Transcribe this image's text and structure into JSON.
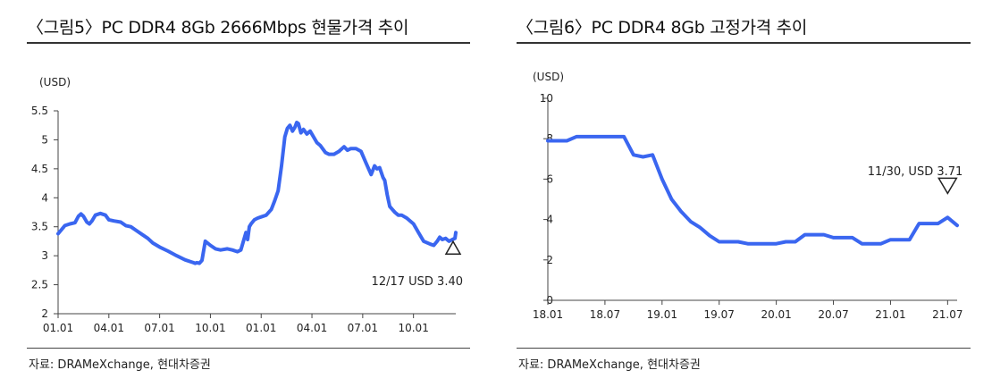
{
  "chart_data": [
    {
      "type": "line",
      "title": "〈그림5〉PC DDR4 8Gb 2666Mbps 현물가격 추이",
      "ylabel": "(USD)",
      "source": "자료: DRAMeXchange, 현대차증권",
      "ylim": [
        2,
        5.5
      ],
      "yticks": [
        "5.5",
        "5",
        "4.5",
        "4",
        "3.5",
        "3",
        "2.5",
        "2"
      ],
      "xlim": [
        0,
        23.5
      ],
      "xtick_positions": [
        0,
        3,
        6,
        9,
        12,
        15,
        18,
        21
      ],
      "xticks": [
        "01.01",
        "04.01",
        "07.01",
        "10.01",
        "01.01",
        "04.01",
        "07.01",
        "10.01"
      ],
      "grid": false,
      "line_color": "#3a66f0",
      "annotation": {
        "text": "12/17  USD 3.40",
        "marker": "up-triangle",
        "x": 23.5,
        "y": 3.4
      },
      "series": [
        {
          "x": [
            0,
            0.2,
            0.4,
            0.7,
            1.0,
            1.2,
            1.35,
            1.5,
            1.7,
            1.85,
            2.0,
            2.2,
            2.5,
            2.8,
            3.0,
            3.3,
            3.7,
            4.0,
            4.3,
            4.6,
            5.0,
            5.3,
            5.6,
            6.0,
            6.5,
            7.0,
            7.5,
            7.8,
            8.0,
            8.1,
            8.2,
            8.35,
            8.5,
            8.7,
            9.0,
            9.3,
            9.6,
            10.0,
            10.3,
            10.6,
            10.8,
            11.0,
            11.1,
            11.2,
            11.3,
            11.4,
            11.6,
            11.8,
            12.0,
            12.3,
            12.6,
            12.8,
            13.0,
            13.2,
            13.4,
            13.55,
            13.7,
            13.85,
            14.0,
            14.1,
            14.2,
            14.35,
            14.5,
            14.7,
            14.9,
            15.1,
            15.3,
            15.5,
            15.8,
            16.0,
            16.3,
            16.6,
            16.9,
            17.1,
            17.3,
            17.6,
            17.9,
            18.2,
            18.5,
            18.7,
            18.85,
            19.0,
            19.2,
            19.3,
            19.45,
            19.6,
            19.75,
            19.9,
            20.1,
            20.3,
            20.6,
            21.0,
            21.3,
            21.6,
            22.0,
            22.2,
            22.4,
            22.55,
            22.7,
            22.9,
            23.1,
            23.3,
            23.45,
            23.5
          ],
          "y": [
            3.38,
            3.45,
            3.52,
            3.55,
            3.57,
            3.68,
            3.72,
            3.68,
            3.58,
            3.55,
            3.6,
            3.7,
            3.73,
            3.7,
            3.62,
            3.6,
            3.58,
            3.52,
            3.5,
            3.44,
            3.36,
            3.3,
            3.22,
            3.15,
            3.08,
            3.0,
            2.93,
            2.9,
            2.88,
            2.87,
            2.88,
            2.87,
            2.92,
            3.25,
            3.18,
            3.12,
            3.1,
            3.12,
            3.1,
            3.07,
            3.1,
            3.3,
            3.4,
            3.28,
            3.5,
            3.55,
            3.62,
            3.65,
            3.67,
            3.7,
            3.8,
            3.95,
            4.12,
            4.55,
            5.05,
            5.2,
            5.25,
            5.15,
            5.22,
            5.3,
            5.28,
            5.12,
            5.18,
            5.1,
            5.15,
            5.05,
            4.95,
            4.9,
            4.78,
            4.75,
            4.75,
            4.8,
            4.88,
            4.82,
            4.85,
            4.85,
            4.8,
            4.6,
            4.4,
            4.55,
            4.5,
            4.52,
            4.35,
            4.3,
            4.05,
            3.85,
            3.8,
            3.75,
            3.7,
            3.7,
            3.65,
            3.55,
            3.4,
            3.25,
            3.2,
            3.18,
            3.25,
            3.32,
            3.28,
            3.3,
            3.25,
            3.28,
            3.3,
            3.4
          ]
        }
      ]
    },
    {
      "type": "line",
      "title": "〈그림6〉PC DDR4 8Gb 고정가격 추이",
      "ylabel": "(USD)",
      "source": "자료: DRAMeXchange, 현대차증권",
      "ylim": [
        0,
        10
      ],
      "yticks": [
        "10",
        "8",
        "6",
        "4",
        "2",
        "0"
      ],
      "xlim": [
        0,
        43
      ],
      "xtick_positions": [
        0,
        6,
        12,
        18,
        24,
        30,
        36,
        42
      ],
      "xticks": [
        "18.01",
        "18.07",
        "19.01",
        "19.07",
        "20.01",
        "20.07",
        "21.01",
        "21.07"
      ],
      "grid": false,
      "line_color": "#3a66f0",
      "annotation": {
        "text": "11/30,  USD 3.71",
        "marker": "down-triangle",
        "x": 42,
        "y": 4.1
      },
      "series": [
        {
          "x": [
            0,
            1,
            2,
            3,
            4,
            5,
            6,
            7,
            8,
            9,
            10,
            11,
            12,
            13,
            14,
            15,
            16,
            17,
            18,
            19,
            20,
            21,
            22,
            23,
            24,
            25,
            26,
            27,
            28,
            29,
            30,
            31,
            32,
            33,
            34,
            35,
            36,
            37,
            38,
            39,
            40,
            41,
            42,
            43
          ],
          "y": [
            7.9,
            7.9,
            7.9,
            8.1,
            8.1,
            8.1,
            8.1,
            8.1,
            8.1,
            7.2,
            7.1,
            7.2,
            6.0,
            5.0,
            4.4,
            3.9,
            3.6,
            3.2,
            2.9,
            2.9,
            2.9,
            2.8,
            2.8,
            2.8,
            2.8,
            2.9,
            2.9,
            3.25,
            3.25,
            3.25,
            3.1,
            3.1,
            3.1,
            2.8,
            2.8,
            2.8,
            3.0,
            3.0,
            3.0,
            3.8,
            3.8,
            3.8,
            4.1,
            3.71
          ]
        }
      ]
    }
  ]
}
